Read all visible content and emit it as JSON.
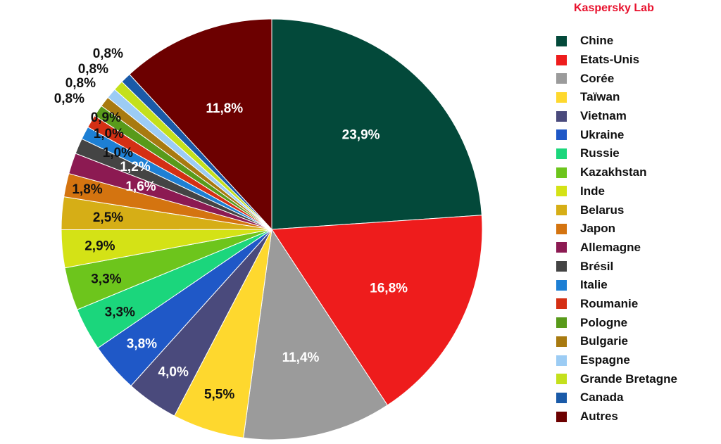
{
  "brand": "Kaspersky Lab",
  "chart_data": {
    "type": "pie",
    "title": "",
    "legend_position": "right",
    "start_angle": "12 o'clock, clockwise",
    "slices": [
      {
        "label": "Chine",
        "value": 23.9,
        "value_label": "23,9%",
        "color": "#03493a",
        "label_color": "#ffffff"
      },
      {
        "label": "Etats-Unis",
        "value": 16.8,
        "value_label": "16,8%",
        "color": "#ee1c1c",
        "label_color": "#ffffff"
      },
      {
        "label": "Corée",
        "value": 11.4,
        "value_label": "11,4%",
        "color": "#9b9b9b",
        "label_color": "#ffffff"
      },
      {
        "label": "Taïwan",
        "value": 5.5,
        "value_label": "5,5%",
        "color": "#fed82e",
        "label_color": "#111111"
      },
      {
        "label": "Vietnam",
        "value": 4.0,
        "value_label": "4,0%",
        "color": "#4a4a7c",
        "label_color": "#ffffff"
      },
      {
        "label": "Ukraine",
        "value": 3.8,
        "value_label": "3,8%",
        "color": "#1f58c7",
        "label_color": "#ffffff"
      },
      {
        "label": "Russie",
        "value": 3.3,
        "value_label": "3,3%",
        "color": "#1bd67c",
        "label_color": "#111111"
      },
      {
        "label": "Kazakhstan",
        "value": 3.3,
        "value_label": "3,3%",
        "color": "#6dc51c",
        "label_color": "#111111"
      },
      {
        "label": "Inde",
        "value": 2.9,
        "value_label": "2,9%",
        "color": "#d4e216",
        "label_color": "#111111"
      },
      {
        "label": "Belarus",
        "value": 2.5,
        "value_label": "2,5%",
        "color": "#d6ae16",
        "label_color": "#111111"
      },
      {
        "label": "Japon",
        "value": 1.8,
        "value_label": "1,8%",
        "color": "#d47410",
        "label_color": "#111111"
      },
      {
        "label": "Allemagne",
        "value": 1.6,
        "value_label": "1,6%",
        "color": "#8c1a52",
        "label_color": "#ffffff"
      },
      {
        "label": "Brésil",
        "value": 1.2,
        "value_label": "1,2%",
        "color": "#444444",
        "label_color": "#ffffff"
      },
      {
        "label": "Italie",
        "value": 1.0,
        "value_label": "1,0%",
        "color": "#1d7fd4",
        "label_color": "#111111"
      },
      {
        "label": "Roumanie",
        "value": 1.0,
        "value_label": "1,0%",
        "color": "#d42f14",
        "label_color": "#111111"
      },
      {
        "label": "Pologne",
        "value": 0.9,
        "value_label": "0,9%",
        "color": "#589a1a",
        "label_color": "#111111"
      },
      {
        "label": "Bulgarie",
        "value": 0.8,
        "value_label": "0,8%",
        "color": "#a87a10",
        "label_color": "#111111"
      },
      {
        "label": "Espagne",
        "value": 0.8,
        "value_label": "0,8%",
        "color": "#9cccf4",
        "label_color": "#111111"
      },
      {
        "label": "Grande Bretagne",
        "value": 0.8,
        "value_label": "0,8%",
        "color": "#c4e01c",
        "label_color": "#111111"
      },
      {
        "label": "Canada",
        "value": 0.8,
        "value_label": "0,8%",
        "color": "#1a5aa8",
        "label_color": "#111111"
      },
      {
        "label": "Autres",
        "value": 11.8,
        "value_label": "11,8%",
        "color": "#6c0000",
        "label_color": "#ffffff"
      }
    ]
  }
}
